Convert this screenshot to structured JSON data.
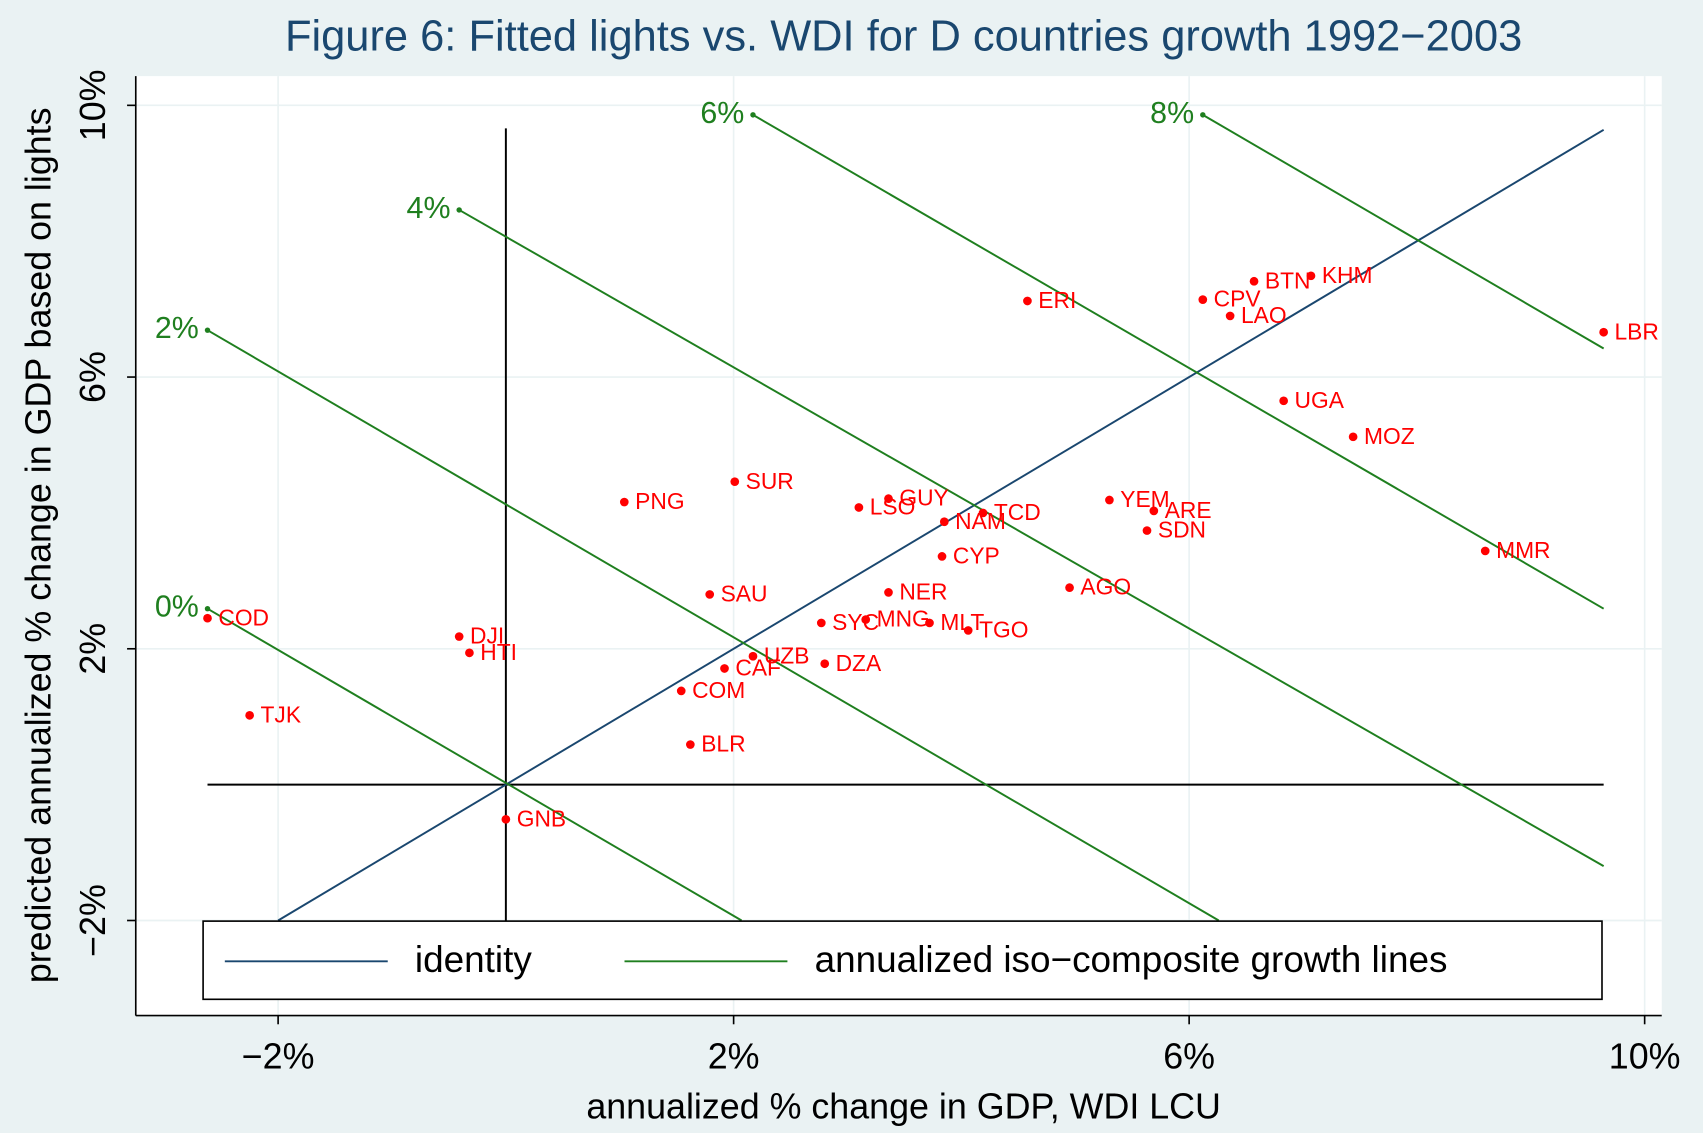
{
  "chart_data": {
    "type": "scatter",
    "title": "Figure 6: Fitted lights vs. WDI for D countries growth 1992−2003",
    "x_label": "annualized % change in GDP, WDI LCU",
    "y_label": "predicted annualized % change in GDP based on lights",
    "xlim": [
      -3.25,
      10.15
    ],
    "ylim": [
      -3.4,
      10.43
    ],
    "xticks": [
      {
        "value": -2,
        "label": "−2%"
      },
      {
        "value": 2,
        "label": "2%"
      },
      {
        "value": 6,
        "label": "6%"
      },
      {
        "value": 10,
        "label": "10%"
      }
    ],
    "yticks": [
      {
        "value": -2,
        "label": "−2%"
      },
      {
        "value": 2,
        "label": "2%"
      },
      {
        "value": 6,
        "label": "6%"
      },
      {
        "value": 10,
        "label": "10%"
      }
    ],
    "grid": true,
    "legend": "bottom",
    "reference_lines": {
      "color": "#000000",
      "x": 0,
      "x_span": [
        -2,
        9.66
      ],
      "y": 0,
      "y_span": [
        -2.62,
        9.64
      ]
    },
    "points": {
      "color": "#ff0000",
      "labels": [
        "COD",
        "TJK",
        "DJI",
        "HTI",
        "GNB",
        "PNG",
        "SUR",
        "SAU",
        "COM",
        "BLR",
        "CAF",
        "UZB",
        "DZA",
        "SYC",
        "MNG",
        "MLT",
        "TGO",
        "NER",
        "CYP",
        "LSO",
        "GUY",
        "NAM",
        "TCD",
        "AGO",
        "YEM",
        "ARE",
        "SDN",
        "ERI",
        "CPV",
        "BTN",
        "KHM",
        "LAO",
        "LBR",
        "UGA",
        "MOZ",
        "MMR"
      ],
      "x": [
        -2.62,
        -2.25,
        -0.41,
        -0.32,
        0.0,
        1.04,
        2.01,
        1.79,
        1.54,
        1.62,
        1.92,
        2.17,
        2.8,
        2.77,
        3.16,
        3.72,
        4.06,
        3.36,
        3.83,
        3.1,
        3.36,
        3.85,
        4.19,
        4.95,
        5.3,
        5.69,
        5.63,
        4.58,
        6.12,
        6.57,
        7.07,
        6.36,
        9.64,
        6.83,
        7.44,
        8.6
      ],
      "y": [
        2.45,
        1.02,
        2.18,
        1.94,
        -0.51,
        4.16,
        4.46,
        2.8,
        1.38,
        0.59,
        1.71,
        1.89,
        1.78,
        2.38,
        2.43,
        2.38,
        2.27,
        2.83,
        3.36,
        4.08,
        4.21,
        3.87,
        4.0,
        2.9,
        4.19,
        4.03,
        3.74,
        7.12,
        7.14,
        7.41,
        7.49,
        6.9,
        6.66,
        5.65,
        5.12,
        3.44
      ]
    },
    "series": [
      {
        "name": "identity",
        "color": "#1a476f",
        "x": [
          -2,
          9.64
        ],
        "y": [
          -2,
          9.64
        ]
      },
      {
        "name": "annualized iso−composite growth lines",
        "color": "#1f7f1f",
        "lines": [
          {
            "label": "0%",
            "x": [
              -2.62,
              2.07
            ],
            "y": [
              2.59,
              -2.0
            ]
          },
          {
            "label": "2%",
            "x": [
              -2.62,
              6.26
            ],
            "y": [
              6.69,
              -2.0
            ]
          },
          {
            "label": "4%",
            "x": [
              -0.41,
              9.64
            ],
            "y": [
              8.46,
              -1.2
            ]
          },
          {
            "label": "6%",
            "x": [
              2.17,
              9.64
            ],
            "y": [
              9.86,
              2.59
            ]
          },
          {
            "label": "8%",
            "x": [
              6.12,
              9.64
            ],
            "y": [
              9.86,
              6.42
            ]
          }
        ]
      }
    ]
  }
}
